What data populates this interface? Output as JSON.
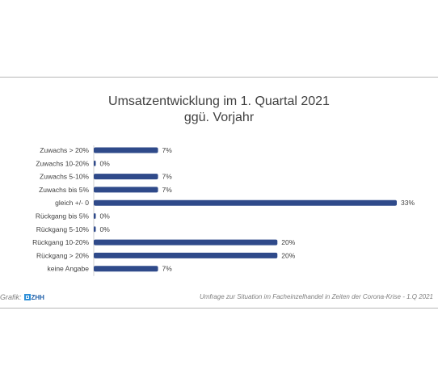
{
  "chart_data": {
    "type": "bar",
    "orientation": "horizontal",
    "title": [
      "Umsatzentwicklung im 1. Quartal 2021",
      "ggü. Vorjahr"
    ],
    "categories": [
      "Zuwachs > 20%",
      "Zuwachs 10-20%",
      "Zuwachs 5-10%",
      "Zuwachs bis 5%",
      "gleich +/- 0",
      "Rückgang bis 5%",
      "Rückgang 5-10%",
      "Rückgang 10-20%",
      "Rückgang > 20%",
      "keine Angabe"
    ],
    "values": [
      7,
      0,
      7,
      7,
      33,
      0,
      0,
      20,
      20,
      7
    ],
    "data_labels": [
      "7%",
      "0%",
      "7%",
      "7%",
      "33%",
      "0%",
      "0%",
      "20%",
      "20%",
      "7%"
    ],
    "unit": "%",
    "xlim": [
      0,
      33
    ],
    "grid": false,
    "bar_color": "#2f4a8a"
  },
  "footer": {
    "left_label": "Grafik:",
    "logo_text": "ZHH",
    "right_text": "Umfrage zur Situation im Facheinzelhandel in Zeiten der Corona-Krise -  1.Q 2021"
  },
  "colors": {
    "title": "#404040",
    "label": "#404040",
    "footer": "#7f7f7f",
    "rule": "#b7b7b7"
  }
}
